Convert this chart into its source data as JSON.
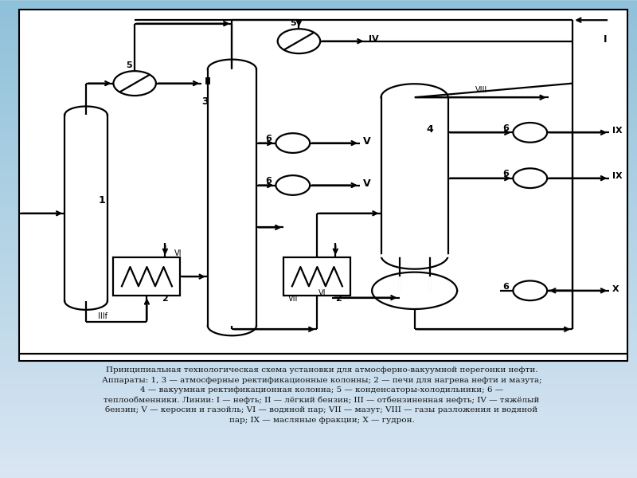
{
  "caption_lines": [
    "Принципиальная технологическая схема установки для атмосферно-вакуумной перегонки нефти.",
    "Аппараты: 1, 3 — атмосферные ректификационные колонны; 2 — печи для нагрева нефти и мазута;",
    "4 — вакуумная ректификационная колонна; 5 — конденсаторы-холодильники; 6 —",
    "теплообменники. Линии: I — нефть; II — лёгкий бензин; III — отбензиненная нефть; IV — тяжёлый",
    "бензин; V — керосин и газойль; VI — водяной пар; VII — мазут; VIII — газы разложения и водяной",
    "пар; IX — масляные фракции; X — гудрон."
  ],
  "lw": 1.6
}
